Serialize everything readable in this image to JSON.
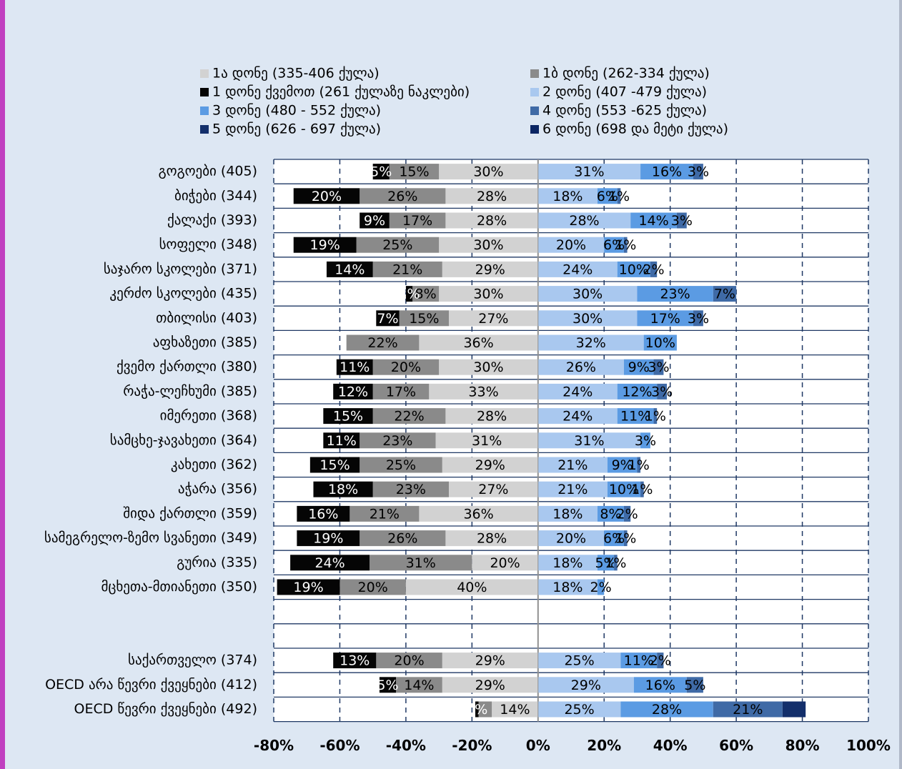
{
  "chart_data": {
    "type": "diverging_stacked_bar",
    "categories": [
      "გოგოები  (405)",
      "ბიჭები  (344)",
      "ქალაქი  (393)",
      "სოფელი  (348)",
      "საჯარო სკოლები  (371)",
      "კერძო სკოლები (435)",
      "თბილისი  (403)",
      "აფხაზეთი  (385)",
      "ქვემო ქართლი  (380)",
      "რაჭა-ლეჩხუმი  (385)",
      "იმერეთი  (368)",
      "სამცხე-ჯავახეთი  (364)",
      "კახეთი  (362)",
      "აჭარა  (356)",
      "შიდა ქართლი  (359)",
      "სამეგრელო-ზემო სვანეთი  (349)",
      "გურია  (335)",
      "მცხეთა-მთიანეთი  (350)",
      null,
      null,
      "საქართველო  (374)",
      "OECD არა წევრი ქვეყნები  (412)",
      "OECD წევრი ქვეყნები  (492)"
    ],
    "series": [
      {
        "name": "1ა დონე (335-406  ქულა)",
        "color": "#d2d2d2",
        "values": [
          -30,
          -28,
          -28,
          -30,
          -29,
          -30,
          -27,
          -36,
          -30,
          -33,
          -28,
          -31,
          -29,
          -27,
          -36,
          -28,
          -20,
          -40,
          null,
          null,
          -29,
          -29,
          -14
        ],
        "value_labels": [
          "30%",
          "28%",
          "28%",
          "30%",
          "29%",
          "30%",
          "27%",
          "36%",
          "30%",
          "33%",
          "28%",
          "31%",
          "29%",
          "27%",
          "36%",
          "28%",
          "20%",
          "40%",
          null,
          null,
          "29%",
          "29%",
          "14%"
        ]
      },
      {
        "name": "1ბ დონე (262-334  ქულა)",
        "color": "#8a8a8a",
        "values": [
          -15,
          -26,
          -17,
          -25,
          -21,
          -8,
          -15,
          -22,
          -20,
          -17,
          -22,
          -23,
          -25,
          -23,
          -21,
          -26,
          -31,
          -20,
          null,
          null,
          -20,
          -14,
          -4
        ],
        "value_labels": [
          "15%",
          "26%",
          "17%",
          "25%",
          "21%",
          "8%",
          "15%",
          "22%",
          "20%",
          "17%",
          "22%",
          "23%",
          "25%",
          "23%",
          "21%",
          "26%",
          "31%",
          "20%",
          null,
          null,
          "20%",
          "14%",
          null
        ]
      },
      {
        "name": "1 დონე ქვემოთ (261 ქულაზე ნაკლები)",
        "color": "#050505",
        "values": [
          -5,
          -20,
          -9,
          -19,
          -14,
          -2,
          -7,
          null,
          -11,
          -12,
          -15,
          -11,
          -15,
          -18,
          -16,
          -19,
          -24,
          -19,
          null,
          null,
          -13,
          -5,
          -1
        ],
        "value_labels": [
          "5%",
          "20%",
          "9%",
          "19%",
          "14%",
          "2%",
          "7%",
          null,
          "11%",
          "12%",
          "15%",
          "11%",
          "15%",
          "18%",
          "16%",
          "19%",
          "24%",
          "19%",
          null,
          null,
          "13%",
          "5%",
          "1%"
        ]
      },
      {
        "name": "2 დონე (407 -479 ქულა)",
        "color": "#a9c8ef",
        "values": [
          31,
          18,
          28,
          20,
          24,
          30,
          30,
          32,
          26,
          24,
          24,
          31,
          21,
          21,
          18,
          20,
          18,
          18,
          null,
          null,
          25,
          29,
          25
        ],
        "value_labels": [
          "31%",
          "18%",
          "28%",
          "20%",
          "24%",
          "30%",
          "30%",
          "32%",
          "26%",
          "24%",
          "24%",
          "31%",
          "21%",
          "21%",
          "18%",
          "20%",
          "18%",
          "18%",
          null,
          null,
          "25%",
          "29%",
          "25%"
        ]
      },
      {
        "name": "3 დონე (480 - 552 ქულა)",
        "color": "#5b9be3",
        "values": [
          16,
          6,
          14,
          6,
          10,
          23,
          17,
          10,
          9,
          12,
          11,
          3,
          9,
          10,
          8,
          6,
          5,
          2,
          null,
          null,
          11,
          16,
          28
        ],
        "value_labels": [
          "16%",
          "6%",
          "14%",
          "6%",
          "10%",
          "23%",
          "17%",
          "10%",
          "9%",
          "12%",
          "11%",
          "3%",
          "9%",
          "10%",
          "8%",
          "6%",
          "5%",
          "2%",
          null,
          null,
          "11%",
          "16%",
          "28%"
        ]
      },
      {
        "name": "4 დონე (553 -625 ქულა)",
        "color": "#3f6aa6",
        "values": [
          3,
          1,
          3,
          1,
          2,
          7,
          3,
          null,
          3,
          3,
          1,
          null,
          1,
          1,
          2,
          1,
          1,
          null,
          null,
          null,
          2,
          5,
          21
        ],
        "value_labels": [
          "3%",
          "1%",
          "3%",
          "1%",
          "2%",
          "7%",
          "3%",
          null,
          "3%",
          "3%",
          "1%",
          null,
          "1%",
          "1%",
          "2%",
          "1%",
          "1%",
          null,
          null,
          null,
          "2%",
          "5%",
          "21%"
        ]
      },
      {
        "name": "5 დონე (626 - 697 ქულა)",
        "color": "#132f6b",
        "values": [
          null,
          null,
          null,
          null,
          null,
          null,
          null,
          null,
          null,
          null,
          null,
          null,
          null,
          null,
          null,
          null,
          null,
          null,
          null,
          null,
          null,
          null,
          7
        ]
      },
      {
        "name": "6 დონე (698 და მეტი ქულა)",
        "color": "#0a2563",
        "values": [
          null,
          null,
          null,
          null,
          null,
          null,
          null,
          null,
          null,
          null,
          null,
          null,
          null,
          null,
          null,
          null,
          null,
          null,
          null,
          null,
          null,
          null,
          null
        ]
      }
    ],
    "xlim": [
      -80,
      100
    ],
    "xticks": [
      {
        "value": -80,
        "label": "-80%"
      },
      {
        "value": -60,
        "label": "-60%"
      },
      {
        "value": -40,
        "label": "-40%"
      },
      {
        "value": -20,
        "label": "-20%"
      },
      {
        "value": 0,
        "label": "0%"
      },
      {
        "value": 20,
        "label": "20%"
      },
      {
        "value": 40,
        "label": "40%"
      },
      {
        "value": 60,
        "label": "60%"
      },
      {
        "value": 80,
        "label": "80%"
      },
      {
        "value": 100,
        "label": "100%"
      }
    ],
    "grid": true,
    "legend": "top"
  }
}
